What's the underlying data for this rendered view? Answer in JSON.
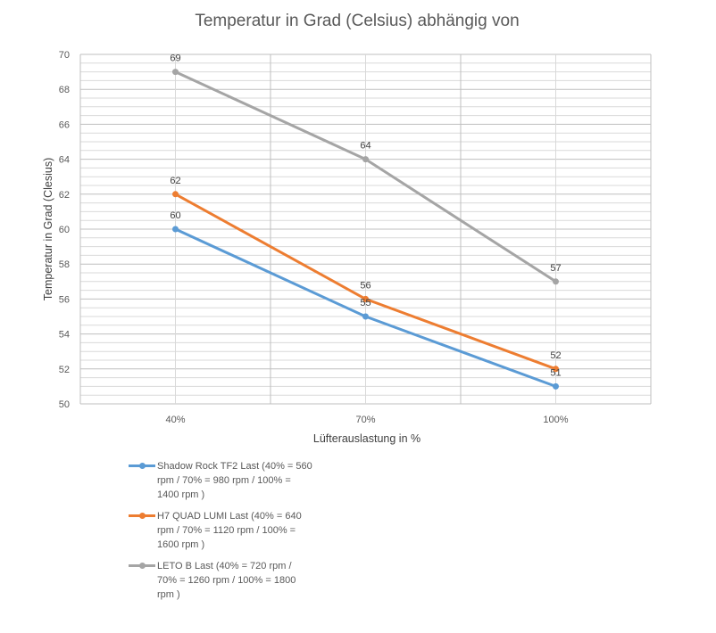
{
  "chart_data": {
    "type": "line",
    "title": "Temperatur in Grad (Celsius) abhängig von",
    "xlabel": "Lüfterauslastung in %",
    "ylabel": "Temperatur in Grad (Clesius)",
    "categories": [
      "40%",
      "70%",
      "100%"
    ],
    "ylim": [
      50,
      70
    ],
    "y_ticks": [
      "50",
      "52",
      "54",
      "56",
      "58",
      "60",
      "62",
      "64",
      "66",
      "68",
      "70"
    ],
    "grid": true,
    "legend_position": "bottom-left",
    "series": [
      {
        "name": "Shadow Rock TF2 Last (40% = 560 rpm / 70% = 980 rpm / 100% = 1400 rpm )",
        "color": "#5b9bd5",
        "values": [
          60,
          55,
          51
        ],
        "labels": [
          "60",
          "55",
          "51"
        ]
      },
      {
        "name": "H7 QUAD LUMI Last (40% = 640 rpm / 70% = 1120 rpm / 100% = 1600 rpm )",
        "color": "#ed7d31",
        "values": [
          62,
          56,
          52
        ],
        "labels": [
          "62",
          "56",
          "52"
        ]
      },
      {
        "name": "LETO B Last (40% = 720 rpm / 70% = 1260 rpm / 100% = 1800 rpm )",
        "color": "#a5a5a5",
        "values": [
          69,
          64,
          57
        ],
        "labels": [
          "69",
          "64",
          "57"
        ]
      }
    ]
  }
}
